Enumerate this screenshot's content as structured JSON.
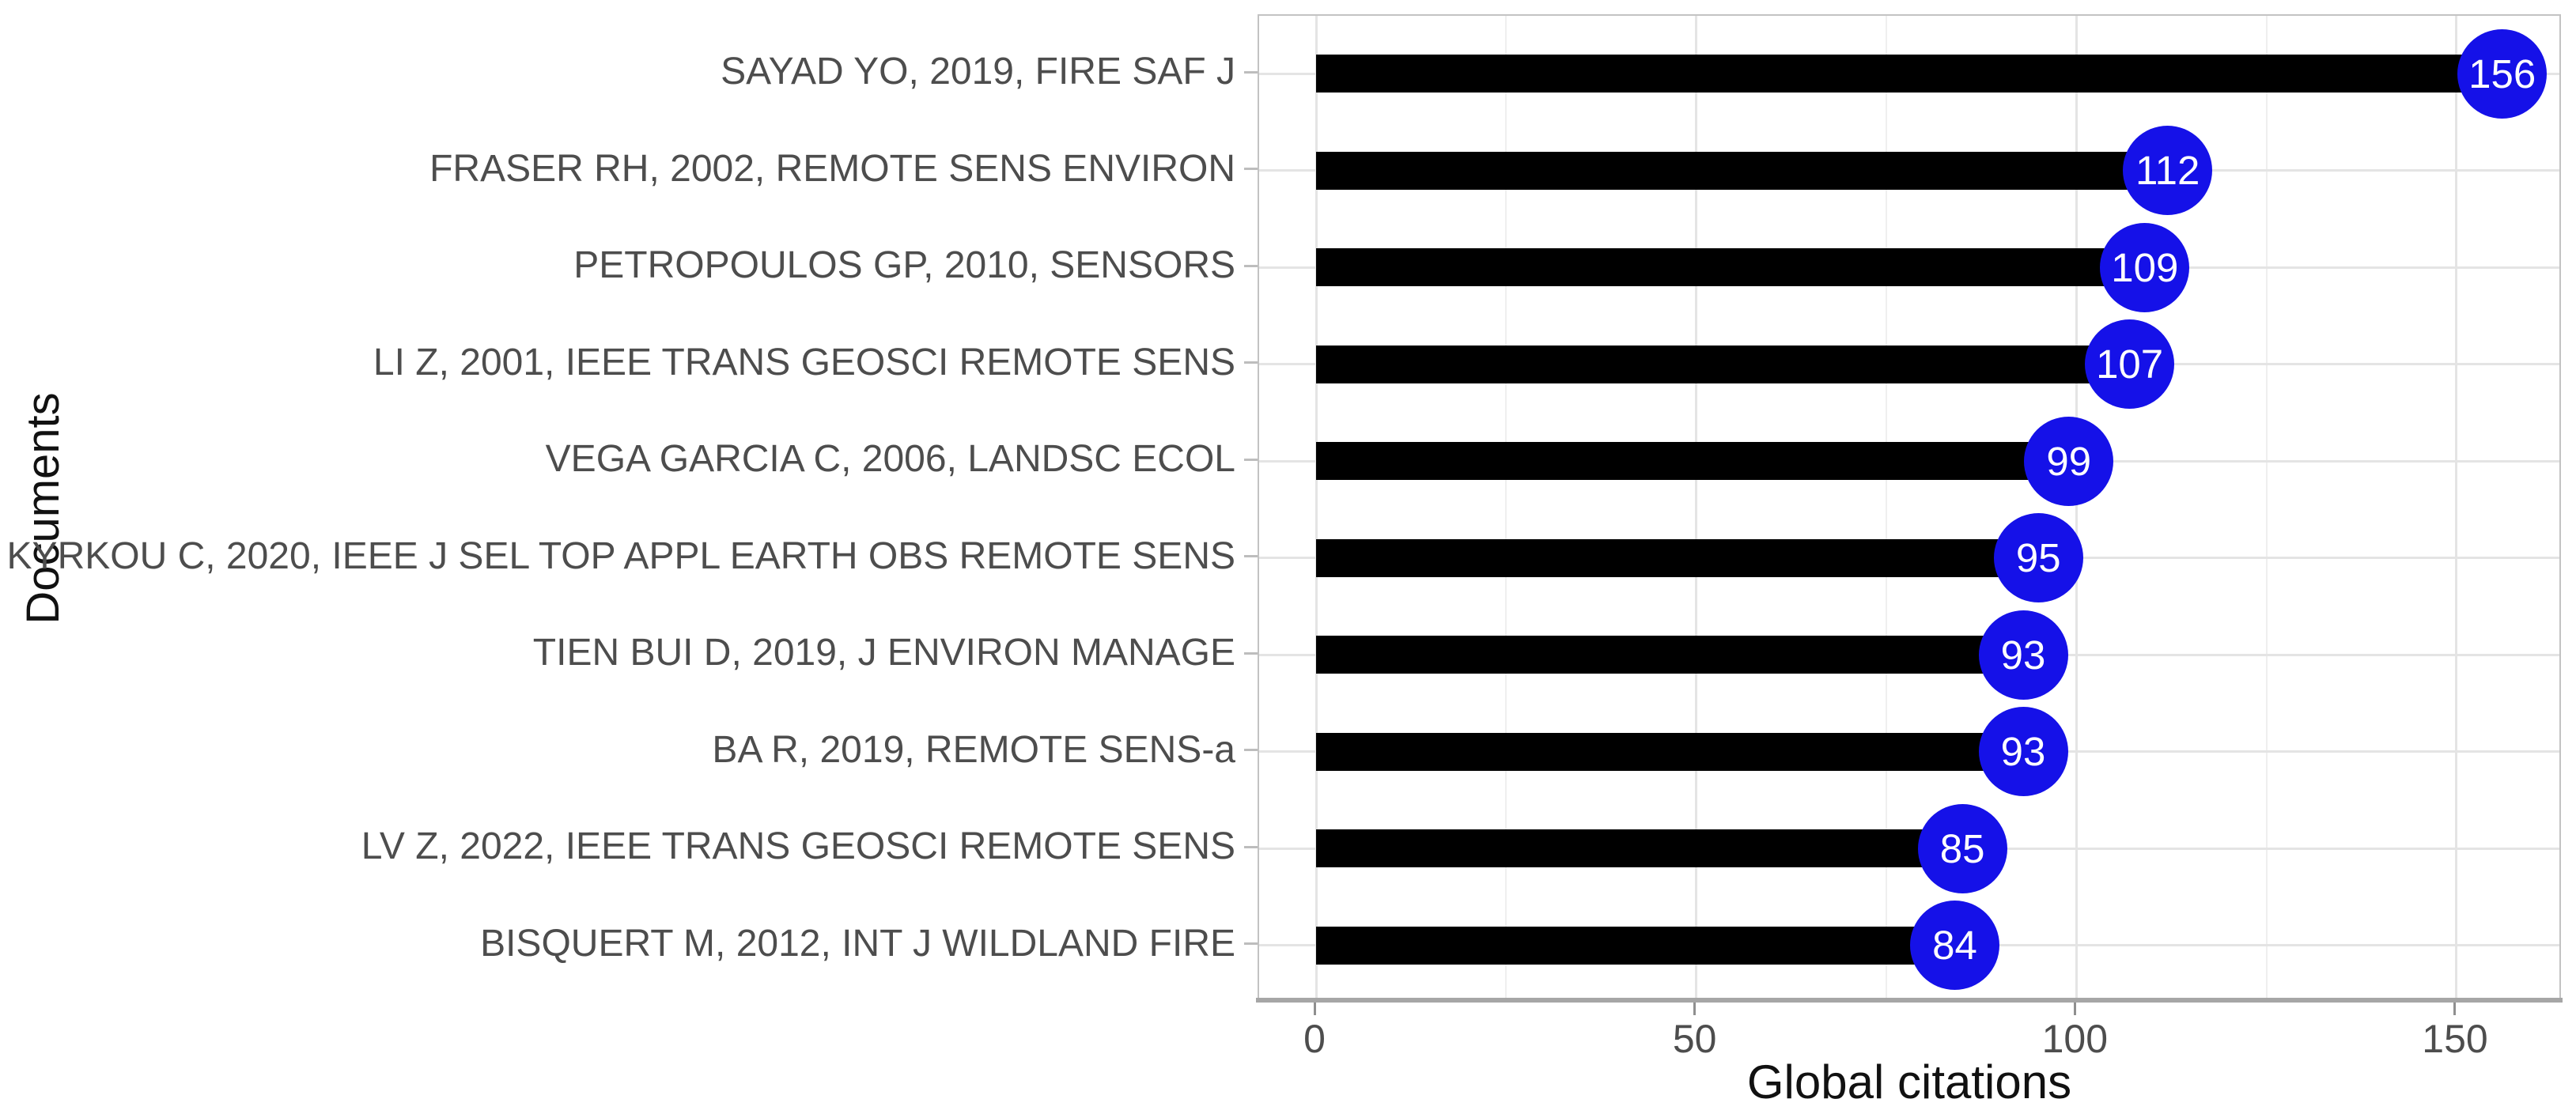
{
  "chart_data": {
    "type": "bar",
    "orientation": "horizontal",
    "xlabel": "Global citations",
    "ylabel": "Documents",
    "categories": [
      "SAYAD YO, 2019, FIRE SAF J",
      "FRASER RH, 2002, REMOTE SENS ENVIRON",
      "PETROPOULOS GP, 2010, SENSORS",
      "LI Z, 2001, IEEE TRANS GEOSCI REMOTE SENS",
      "VEGA GARCIA C, 2006, LANDSC ECOL",
      "KYRKOU C, 2020, IEEE J SEL TOP APPL EARTH OBS REMOTE SENS",
      "TIEN BUI D, 2019, J ENVIRON MANAGE",
      "BA R, 2019, REMOTE SENS-a",
      "LV Z, 2022, IEEE TRANS GEOSCI REMOTE SENS",
      "BISQUERT M, 2012, INT J WILDLAND FIRE"
    ],
    "values": [
      156,
      112,
      109,
      107,
      99,
      95,
      93,
      93,
      85,
      84
    ],
    "x_major_ticks": [
      0,
      50,
      100,
      150
    ],
    "x_minor_ticks": [
      25,
      75,
      125
    ],
    "xlim": [
      -7.8,
      163.8
    ],
    "grid": "vertical major+minor, horizontal major per category",
    "legend_position": "none",
    "colors": {
      "bar": "#000000",
      "marker_fill": "#1511E8",
      "marker_text": "#ffffff",
      "tick_label": "#4d4d4d",
      "axis_title": "#111111"
    }
  }
}
